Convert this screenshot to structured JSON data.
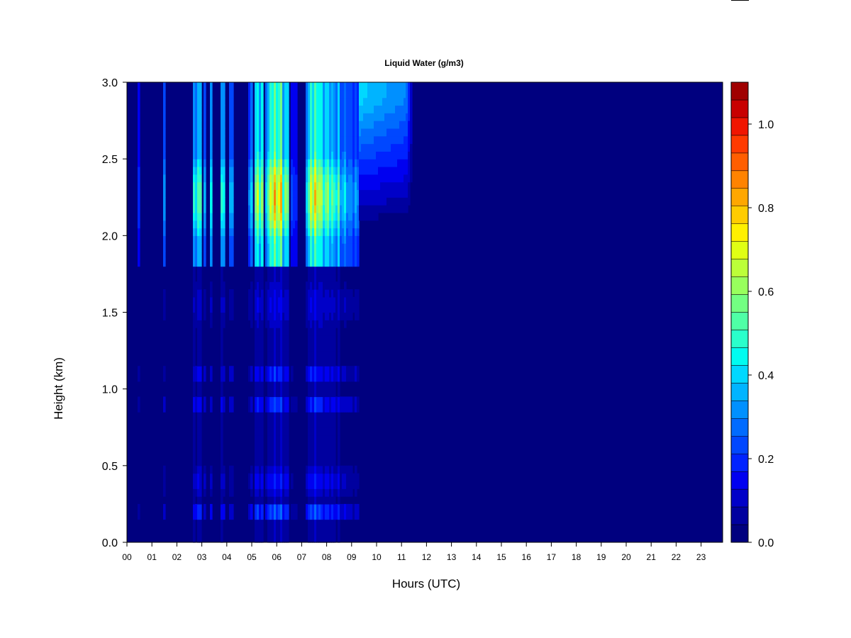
{
  "chart_data": {
    "type": "heatmap",
    "title": "Liquid Water (g/m3)",
    "xlabel": "Hours (UTC)",
    "ylabel": "Height (km)",
    "x_ticks": [
      "00",
      "01",
      "02",
      "03",
      "04",
      "05",
      "06",
      "07",
      "08",
      "09",
      "10",
      "11",
      "12",
      "13",
      "14",
      "15",
      "16",
      "17",
      "18",
      "19",
      "20",
      "21",
      "22",
      "23"
    ],
    "y_ticks": [
      "0.0",
      "0.5",
      "1.0",
      "1.5",
      "2.0",
      "2.5",
      "3.0"
    ],
    "xlim": [
      0,
      23.85
    ],
    "ylim": [
      0,
      3.0
    ],
    "colorbar": {
      "range": [
        0.0,
        1.1
      ],
      "step": 0.05,
      "tick_values": [
        0.0,
        0.2,
        0.4,
        0.6,
        0.8,
        1.0
      ],
      "tick_labels": [
        "0.0",
        "0.2",
        "0.4",
        "0.6",
        "0.8",
        "1.0"
      ],
      "colors": [
        "#00007f",
        "#00009f",
        "#0000c8",
        "#0000f0",
        "#0023ff",
        "#0047ff",
        "#006bff",
        "#0090ff",
        "#00b4ff",
        "#00d8ff",
        "#00fcf0",
        "#2affcb",
        "#4fffa6",
        "#73ff82",
        "#98ff5d",
        "#bcff39",
        "#e0ff14",
        "#fff000",
        "#ffcc00",
        "#ffa700",
        "#ff8300",
        "#ff5e00",
        "#ff3a00",
        "#f01500",
        "#c80000",
        "#a00000"
      ]
    },
    "column_peaks": [
      [
        0.45,
        0.55,
        0.35
      ],
      [
        1.45,
        1.52,
        0.4
      ],
      [
        2.6,
        2.75,
        0.6
      ],
      [
        2.75,
        2.95,
        0.72
      ],
      [
        3.05,
        3.15,
        0.45
      ],
      [
        3.3,
        3.45,
        0.55
      ],
      [
        3.75,
        3.9,
        0.62
      ],
      [
        4.05,
        4.3,
        0.55
      ],
      [
        4.9,
        5.05,
        0.5
      ],
      [
        5.1,
        5.45,
        0.85
      ],
      [
        5.55,
        5.7,
        0.7
      ],
      [
        5.7,
        6.2,
        1.05
      ],
      [
        6.2,
        6.5,
        0.8
      ],
      [
        6.55,
        6.8,
        0.3
      ],
      [
        7.15,
        7.35,
        0.7
      ],
      [
        7.35,
        7.75,
        1.0
      ],
      [
        7.75,
        8.2,
        0.8
      ],
      [
        8.2,
        8.5,
        0.7
      ],
      [
        8.5,
        8.9,
        0.55
      ],
      [
        8.9,
        9.3,
        0.45
      ]
    ],
    "upper_layer_fade": [
      [
        9.3,
        0.4
      ],
      [
        10.2,
        0.35
      ],
      [
        11.2,
        0.3
      ],
      [
        11.5,
        0.0
      ]
    ]
  }
}
